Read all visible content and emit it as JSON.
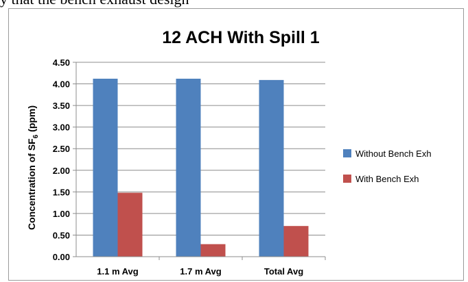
{
  "top_text": "y that the bench exhaust design",
  "chart_data": {
    "type": "bar",
    "title": "12 ACH With Spill 1",
    "ylabel": "Concentration of SF",
    "ylabel_sub": "6",
    "ylabel_unit": " (ppm)",
    "categories": [
      "1.1 m Avg",
      "1.7 m Avg",
      "Total Avg"
    ],
    "yticks": [
      "0.00",
      "0.50",
      "1.00",
      "1.50",
      "2.00",
      "2.50",
      "3.00",
      "3.50",
      "4.00",
      "4.50"
    ],
    "ylim": [
      0,
      4.5
    ],
    "grid": true,
    "legend_position": "right",
    "series": [
      {
        "name": "Without Bench Exh",
        "color": "#4f81bd",
        "values": [
          4.12,
          4.12,
          4.09
        ]
      },
      {
        "name": "With Bench Exh",
        "color": "#c0504d",
        "values": [
          1.48,
          0.29,
          0.71
        ]
      }
    ]
  }
}
